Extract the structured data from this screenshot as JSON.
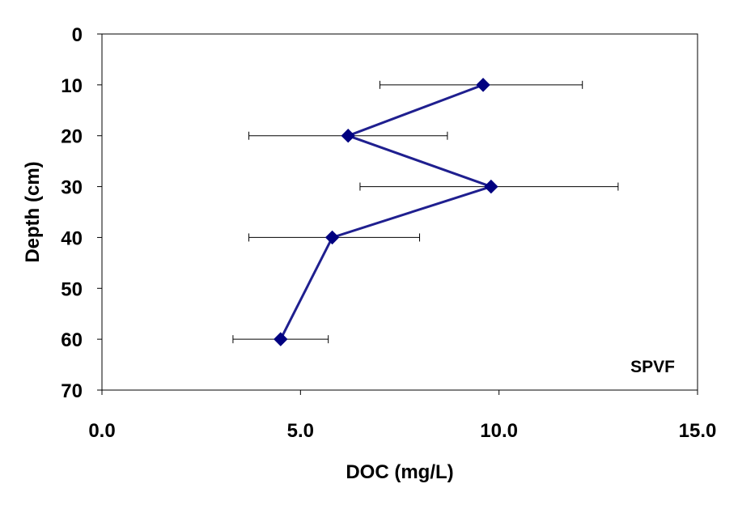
{
  "chart_data": {
    "type": "line",
    "title": "",
    "xlabel": "DOC (mg/L)",
    "ylabel": "Depth (cm)",
    "xlim": [
      0,
      15
    ],
    "ylim": [
      0,
      70
    ],
    "y_inverted": true,
    "x_ticks": [
      "0.0",
      "5.0",
      "10.0",
      "15.0"
    ],
    "x_tick_values": [
      0,
      5,
      10,
      15
    ],
    "y_ticks": [
      "0",
      "10",
      "20",
      "30",
      "40",
      "50",
      "60",
      "70"
    ],
    "y_tick_values": [
      0,
      10,
      20,
      30,
      40,
      50,
      60,
      70
    ],
    "grid": false,
    "legend": "none",
    "annotation": "SPVF",
    "series": [
      {
        "color": "#1f1f8f",
        "marker_color": "#000080",
        "marker": "diamond",
        "points": [
          {
            "x": 9.6,
            "y": 10,
            "x_err_low": 7.0,
            "x_err_high": 12.1
          },
          {
            "x": 6.2,
            "y": 20,
            "x_err_low": 3.7,
            "x_err_high": 8.7
          },
          {
            "x": 9.8,
            "y": 30,
            "x_err_low": 6.5,
            "x_err_high": 13.0
          },
          {
            "x": 5.8,
            "y": 40,
            "x_err_low": 3.7,
            "x_err_high": 8.0
          },
          {
            "x": 4.5,
            "y": 60,
            "x_err_low": 3.3,
            "x_err_high": 5.7
          }
        ]
      }
    ]
  }
}
